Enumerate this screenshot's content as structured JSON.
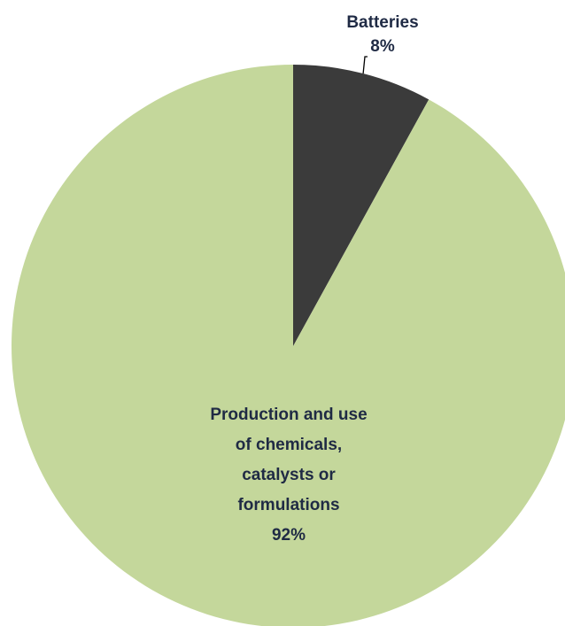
{
  "chart_data": {
    "type": "pie",
    "title": "",
    "start_angle_deg": 0,
    "direction": "clockwise",
    "legend": "none",
    "slices": [
      {
        "label": "Batteries",
        "value": 8,
        "value_label": "8%",
        "label_lines": [
          "Batteries"
        ],
        "color": "#3b3b3b"
      },
      {
        "label": "Production and use of chemicals, catalysts or formulations",
        "value": 92,
        "value_label": "92%",
        "label_lines": [
          "Production and use",
          "of chemicals,",
          "catalysts or",
          "formulations"
        ],
        "color": "#c4d79b"
      }
    ]
  }
}
